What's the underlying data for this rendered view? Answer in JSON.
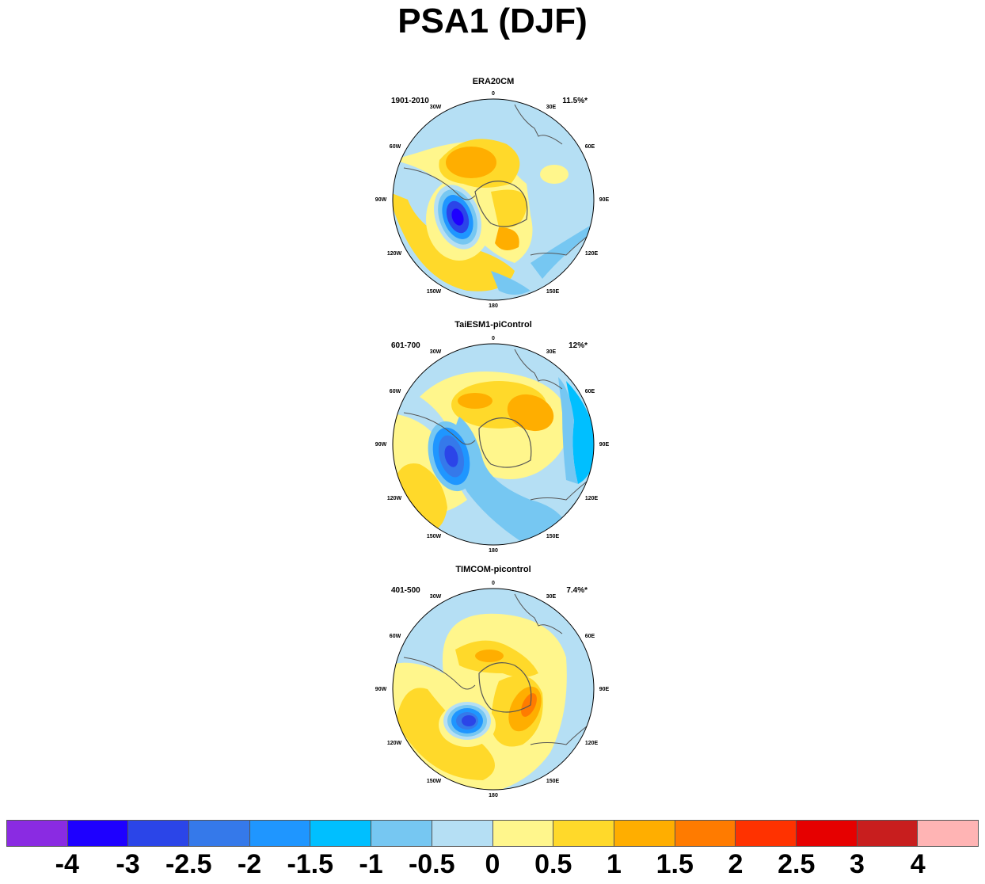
{
  "title": "PSA1 (DJF)",
  "panels": [
    {
      "name": "ERA20CM",
      "period": "1901-2010",
      "variance": "11.5%*"
    },
    {
      "name": "TaiESM1-piControl",
      "period": "601-700",
      "variance": "12%*"
    },
    {
      "name": "TIMCOM-picontrol",
      "period": "401-500",
      "variance": "7.4%*"
    }
  ],
  "longitude_labels": [
    "0",
    "30E",
    "60E",
    "90E",
    "120E",
    "150E",
    "180",
    "150W",
    "120W",
    "90W",
    "60W",
    "30W"
  ],
  "colorbar": {
    "colors": [
      "#8a2be2",
      "#1e00ff",
      "#2b45e8",
      "#3579ea",
      "#1f96ff",
      "#00bfff",
      "#76c7f2",
      "#b5dff4",
      "#fff68c",
      "#ffd92a",
      "#ffae00",
      "#ff7b00",
      "#ff3200",
      "#e60000",
      "#c81e1e",
      "#ffb4b4"
    ],
    "labels": [
      "-4",
      "-3",
      "-2.5",
      "-2",
      "-1.5",
      "-1",
      "-0.5",
      "0",
      "0.5",
      "1",
      "1.5",
      "2",
      "2.5",
      "3",
      "4"
    ]
  }
}
